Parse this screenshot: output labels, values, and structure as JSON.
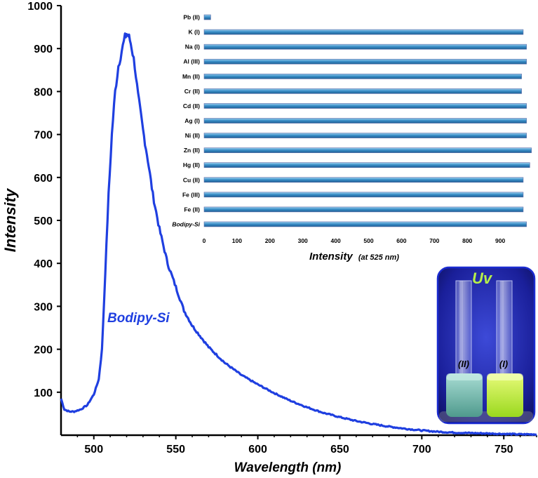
{
  "chart_data": [
    {
      "type": "line",
      "title": "",
      "xlabel": "Wavelength (nm)",
      "ylabel": "Intensity",
      "xlim": [
        480,
        770
      ],
      "ylim": [
        0,
        1000
      ],
      "xticks": [
        500,
        550,
        600,
        650,
        700,
        750
      ],
      "yticks": [
        100,
        200,
        300,
        400,
        500,
        600,
        700,
        800,
        900,
        1000
      ],
      "series_label": "Bodipy-Si",
      "color": "#1f3fe0",
      "series": [
        {
          "name": "Bodipy-Si",
          "x": [
            480,
            482,
            485,
            488,
            492,
            496,
            500,
            503,
            505,
            507,
            509,
            511,
            513,
            515,
            517,
            519,
            520,
            521,
            522,
            523,
            525,
            527,
            530,
            533,
            536,
            540,
            545,
            550,
            555,
            560,
            570,
            580,
            590,
            600,
            610,
            620,
            630,
            640,
            650,
            660,
            670,
            680,
            690,
            700,
            710,
            720,
            730,
            740,
            750,
            760,
            770
          ],
          "y": [
            85,
            60,
            55,
            55,
            60,
            70,
            95,
            130,
            200,
            380,
            560,
            700,
            800,
            860,
            895,
            925,
            935,
            930,
            920,
            905,
            860,
            790,
            710,
            640,
            560,
            480,
            400,
            345,
            290,
            255,
            205,
            168,
            140,
            118,
            98,
            80,
            65,
            52,
            42,
            33,
            26,
            20,
            15,
            11,
            8,
            6,
            5,
            4,
            3,
            2,
            2
          ]
        }
      ]
    },
    {
      "type": "bar",
      "orientation": "horizontal",
      "title": "",
      "xlabel": "Intensity",
      "xlabel_note": "(at 525 nm)",
      "ylabel": "",
      "xlim": [
        0,
        1000
      ],
      "xticks": [
        0,
        100,
        200,
        300,
        400,
        500,
        600,
        700,
        800,
        900
      ],
      "categories": [
        "Pb (II)",
        "K (I)",
        "Na (I)",
        "Al (III)",
        "Mn (II)",
        "Cr (II)",
        "Cd (II)",
        "Ag (I)",
        "Ni (II)",
        "Zn (II)",
        "Hg (II)",
        "Cu (II)",
        "Fe (III)",
        "Fe (II)",
        "Bodipy-Si"
      ],
      "values": [
        20,
        970,
        980,
        980,
        965,
        965,
        980,
        980,
        980,
        995,
        990,
        970,
        970,
        970,
        980
      ]
    }
  ],
  "photo": {
    "title": "Uv",
    "vial_left_label": "(II)",
    "vial_right_label": "(I)",
    "title_color": "#b6f04a",
    "left_liquid_color": "#7ec7b8",
    "right_liquid_color": "#c9f04a"
  }
}
